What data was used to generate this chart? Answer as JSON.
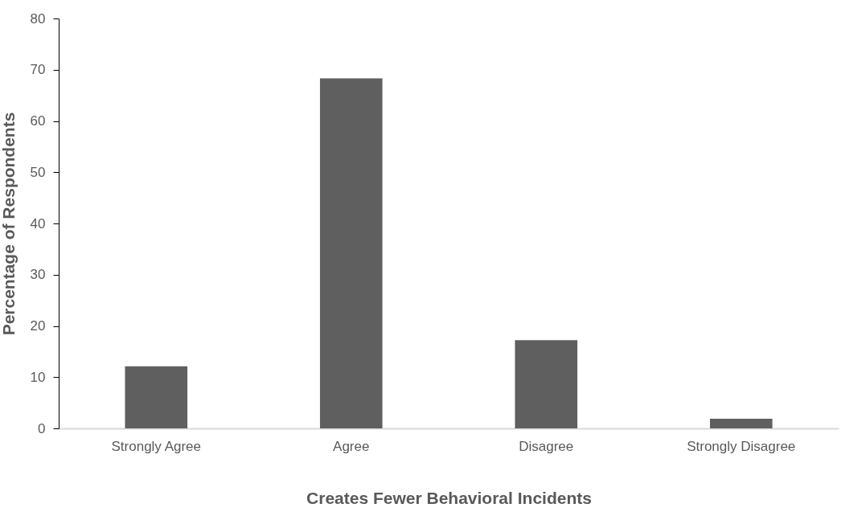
{
  "chart_data": {
    "type": "bar",
    "xlabel": "Creates Fewer Behavioral Incidents",
    "ylabel": "Percentage of Respondents",
    "categories": [
      "Strongly Agree",
      "Agree",
      "Disagree",
      "Strongly Disagree"
    ],
    "values": [
      12.1,
      68.3,
      17.2,
      1.9
    ],
    "color": "#5f5f5f",
    "ylim": [
      0,
      80
    ],
    "yticks": [
      0,
      10,
      20,
      30,
      40,
      50,
      60,
      70,
      80
    ],
    "grid": false
  }
}
